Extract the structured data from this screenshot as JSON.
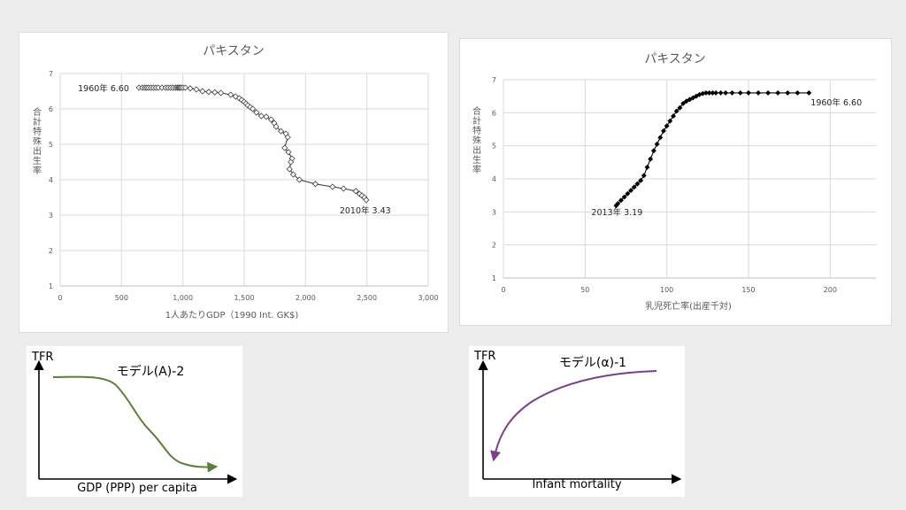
{
  "chart_data": [
    {
      "type": "scatter",
      "title": "パキスタン",
      "xlabel": "1人あたりGDP（1990 Int. GK$)",
      "ylabel": "合計特殊出生率",
      "xlim": [
        0,
        3000
      ],
      "ylim": [
        1,
        7
      ],
      "xticks": [
        0,
        500,
        1000,
        1500,
        2000,
        2500,
        3000
      ],
      "xtick_labels": [
        "0",
        "500",
        "1,000",
        "1,500",
        "2,000",
        "2,500",
        "3,000"
      ],
      "yticks": [
        1,
        2,
        3,
        4,
        5,
        6,
        7
      ],
      "ytick_labels": [
        "1",
        "2",
        "3",
        "4",
        "5",
        "6",
        "7"
      ],
      "grid": true,
      "marker": "open-diamond",
      "line_color": "#404040",
      "annotations": [
        {
          "text": "1960年 6.60",
          "x": 650,
          "y": 6.6
        },
        {
          "text": "2010年 3.43",
          "x": 2494,
          "y": 3.43
        }
      ],
      "series": [
        {
          "x": [
            643,
            670,
            690,
            705,
            720,
            740,
            760,
            780,
            800,
            830,
            860,
            880,
            900,
            920,
            940,
            955,
            965,
            975,
            985,
            1000,
            1020,
            1060,
            1110,
            1160,
            1210,
            1260,
            1310,
            1390,
            1430,
            1460,
            1480,
            1500,
            1515,
            1530,
            1550,
            1570,
            1600,
            1640,
            1680,
            1720,
            1745,
            1760,
            1800,
            1840,
            1855,
            1830,
            1860,
            1890,
            1880,
            1870,
            1900,
            1950,
            2080,
            2220,
            2310,
            2410,
            2440,
            2460,
            2480,
            2494
          ],
          "y": [
            6.6,
            6.6,
            6.6,
            6.6,
            6.6,
            6.6,
            6.6,
            6.6,
            6.6,
            6.6,
            6.6,
            6.6,
            6.6,
            6.6,
            6.6,
            6.6,
            6.6,
            6.6,
            6.6,
            6.6,
            6.6,
            6.58,
            6.55,
            6.5,
            6.48,
            6.47,
            6.45,
            6.4,
            6.35,
            6.3,
            6.25,
            6.2,
            6.15,
            6.1,
            6.05,
            6.0,
            5.9,
            5.8,
            5.78,
            5.7,
            5.6,
            5.5,
            5.37,
            5.3,
            5.2,
            4.9,
            4.78,
            4.6,
            4.5,
            4.3,
            4.15,
            4.0,
            3.88,
            3.8,
            3.75,
            3.68,
            3.6,
            3.55,
            3.5,
            3.43
          ]
        }
      ]
    },
    {
      "type": "scatter",
      "title": "パキスタン",
      "xlabel": "乳児死亡率(出産千対)",
      "ylabel": "合計特殊出生率",
      "xlim": [
        0,
        228
      ],
      "ylim": [
        1,
        7
      ],
      "xticks": [
        0,
        50,
        100,
        150,
        200
      ],
      "xtick_labels": [
        "0",
        "50",
        "100",
        "150",
        "200"
      ],
      "yticks": [
        1,
        2,
        3,
        4,
        5,
        6,
        7
      ],
      "ytick_labels": [
        "1",
        "2",
        "3",
        "4",
        "5",
        "6",
        "7"
      ],
      "grid": true,
      "marker": "filled-diamond",
      "line_color": "#000000",
      "annotations": [
        {
          "text": "1960年 6.60",
          "x": 187,
          "y": 6.6
        },
        {
          "text": "2013年 3.19",
          "x": 69,
          "y": 3.19
        }
      ],
      "series": [
        {
          "x": [
            187,
            180,
            174,
            168,
            162,
            156,
            150,
            145,
            140,
            136,
            133,
            130,
            128,
            126,
            124,
            122,
            120,
            118,
            116,
            114,
            112,
            110,
            108,
            106,
            104,
            102,
            100,
            98,
            96,
            94,
            92,
            90,
            88,
            86,
            84,
            82,
            80,
            78,
            76,
            74,
            72,
            70,
            69
          ],
          "y": [
            6.6,
            6.6,
            6.6,
            6.6,
            6.6,
            6.6,
            6.6,
            6.6,
            6.6,
            6.6,
            6.6,
            6.6,
            6.6,
            6.6,
            6.6,
            6.58,
            6.55,
            6.5,
            6.45,
            6.4,
            6.35,
            6.28,
            6.15,
            6.05,
            5.9,
            5.75,
            5.6,
            5.45,
            5.25,
            5.05,
            4.85,
            4.6,
            4.35,
            4.1,
            3.95,
            3.85,
            3.75,
            3.65,
            3.55,
            3.45,
            3.35,
            3.25,
            3.19
          ]
        }
      ]
    },
    {
      "type": "line",
      "title": "モデル(A)-2",
      "xlabel": "GDP (PPP) per capita",
      "ylabel": "TFR",
      "line_color": "#5b7f3a",
      "shape": "sigmoid-decreasing"
    },
    {
      "type": "line",
      "title": "モデル(α)-1",
      "xlabel": "Infant mortality",
      "ylabel": "TFR",
      "line_color": "#7a3f8c",
      "shape": "concave-increasing"
    }
  ]
}
